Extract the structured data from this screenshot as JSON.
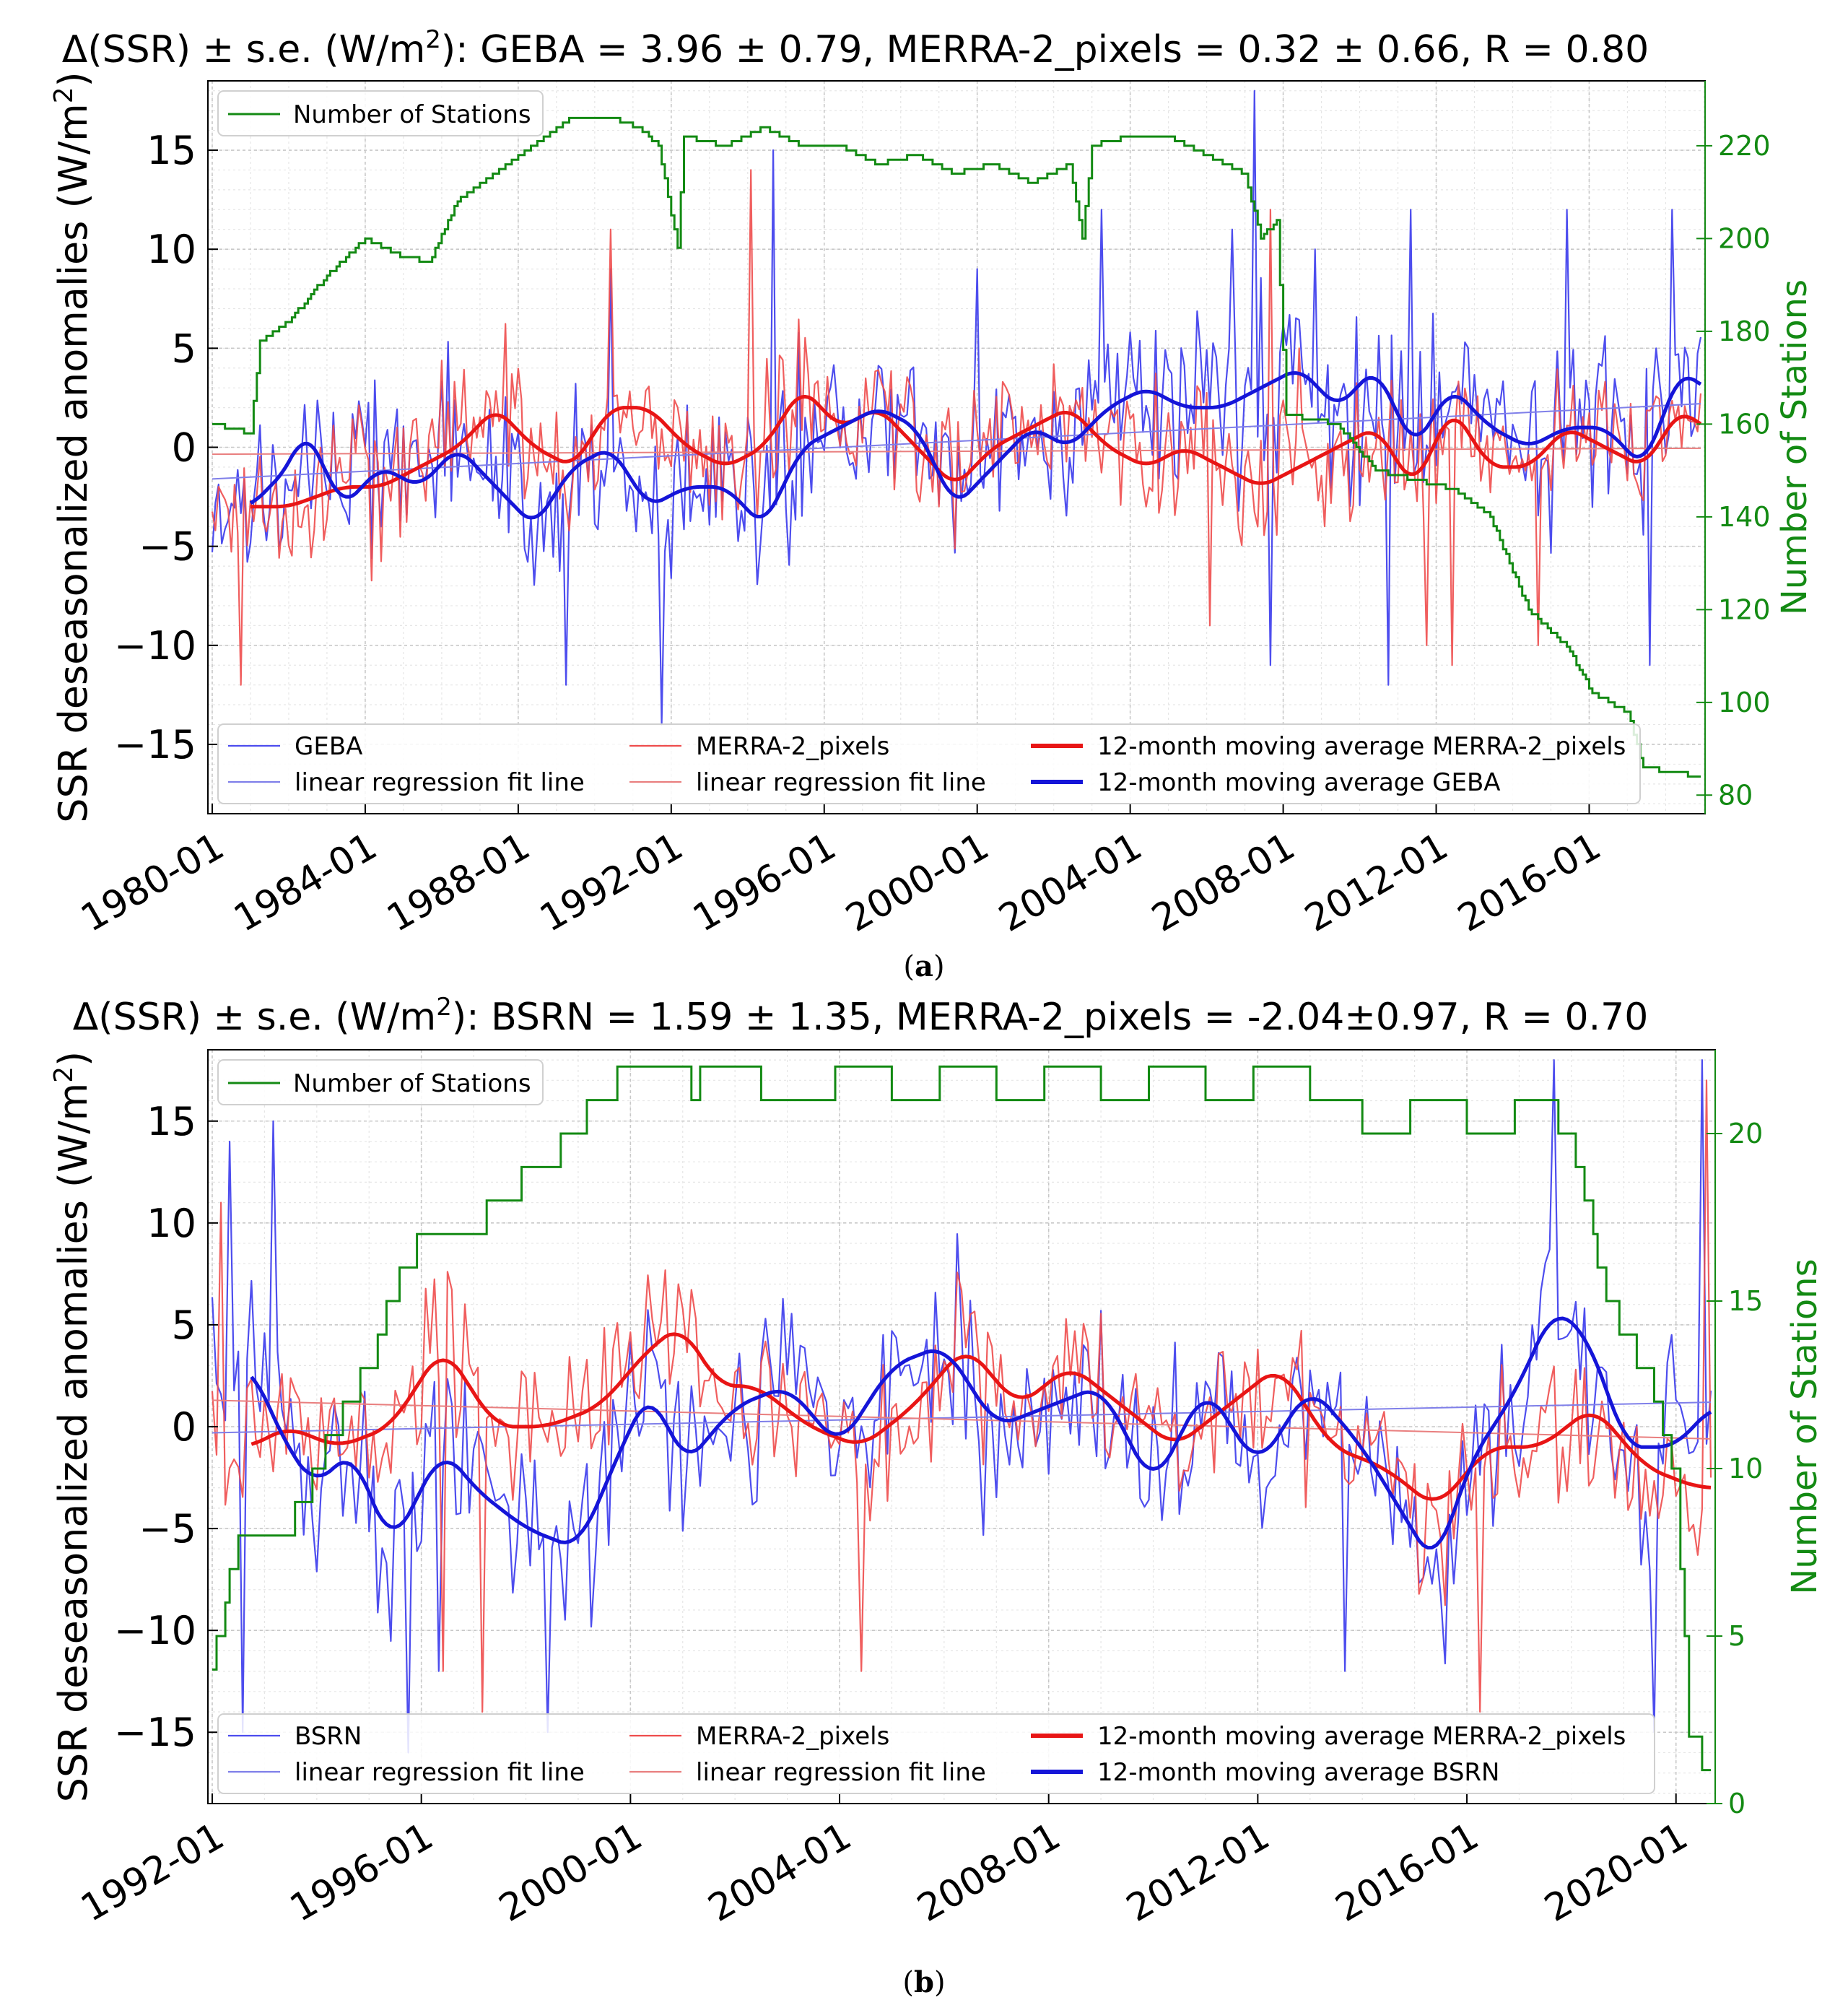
{
  "figure": {
    "captions": [
      {
        "open": "(",
        "letter": "a",
        "close": ")"
      },
      {
        "open": "(",
        "letter": "b",
        "close": ")"
      }
    ]
  },
  "colors": {
    "station": "#138a13",
    "ref_thin": "#4d4dee",
    "merra_thin": "#ee4d4d",
    "ref_ma": "#1515d8",
    "merra_ma": "#e81515",
    "reg_ref": "#7f7fe9",
    "reg_merra": "#e97f7f",
    "grid": "#c8c8c8"
  },
  "chart_data": [
    {
      "id": "a",
      "type": "line",
      "title": "Δ(SSR) ± s.e. (W/m²):  GEBA = 3.96 ± 0.79,  MERRA-2_pixels = 0.32 ± 0.66,  R = 0.80",
      "ylabel": "SSR deseasonalized anomalies (W/m²)",
      "y2label": "Number of Stations",
      "xlabel": "",
      "x_range": [
        "1980-01",
        "2018-12"
      ],
      "ylim": [
        -18.5,
        18.5
      ],
      "y2lim": [
        76,
        234
      ],
      "yticks": [
        -15,
        -10,
        -5,
        0,
        5,
        10,
        15
      ],
      "ytick_labels": [
        "−15",
        "−10",
        "−5",
        "0",
        "5",
        "10",
        "15"
      ],
      "y2ticks": [
        80,
        100,
        120,
        140,
        160,
        180,
        200,
        220
      ],
      "xticks": [
        "1980-01",
        "1984-01",
        "1988-01",
        "1992-01",
        "1996-01",
        "2000-01",
        "2004-01",
        "2008-01",
        "2012-01",
        "2016-01"
      ],
      "seed": 17,
      "station_legend": "Number of Stations",
      "station_keypoints": [
        [
          "1980-01",
          160
        ],
        [
          "1981-01",
          158
        ],
        [
          "1981-04",
          178
        ],
        [
          "1982-01",
          182
        ],
        [
          "1983-01",
          192
        ],
        [
          "1984-01",
          200
        ],
        [
          "1985-01",
          196
        ],
        [
          "1985-09",
          195
        ],
        [
          "1986-06",
          208
        ],
        [
          "1987-06",
          214
        ],
        [
          "1988-06",
          220
        ],
        [
          "1989-06",
          226
        ],
        [
          "1990-06",
          226
        ],
        [
          "1991-03",
          224
        ],
        [
          "1991-09",
          220
        ],
        [
          "1992-03",
          198
        ],
        [
          "1992-05",
          222
        ],
        [
          "1993-06",
          220
        ],
        [
          "1994-06",
          224
        ],
        [
          "1995-06",
          220
        ],
        [
          "1996-06",
          220
        ],
        [
          "1997-06",
          216
        ],
        [
          "1998-06",
          218
        ],
        [
          "1999-06",
          214
        ],
        [
          "2000-06",
          216
        ],
        [
          "2001-06",
          212
        ],
        [
          "2002-06",
          216
        ],
        [
          "2002-10",
          200
        ],
        [
          "2003-01",
          220
        ],
        [
          "2004-01",
          222
        ],
        [
          "2005-01",
          222
        ],
        [
          "2006-01",
          218
        ],
        [
          "2007-01",
          214
        ],
        [
          "2007-06",
          200
        ],
        [
          "2007-11",
          204
        ],
        [
          "2008-02",
          162
        ],
        [
          "2009-06",
          160
        ],
        [
          "2010-06",
          150
        ],
        [
          "2011-06",
          148
        ],
        [
          "2012-06",
          146
        ],
        [
          "2013-06",
          140
        ],
        [
          "2014-06",
          120
        ],
        [
          "2015-06",
          112
        ],
        [
          "2016-02",
          102
        ],
        [
          "2017-01",
          98
        ],
        [
          "2017-06",
          86
        ],
        [
          "2018-12",
          84
        ]
      ],
      "ref_ma_keypoints": [
        [
          "1981-01",
          -3
        ],
        [
          "1982-01",
          -1
        ],
        [
          "1982-06",
          1
        ],
        [
          "1983-06",
          -3
        ],
        [
          "1984-06",
          -1
        ],
        [
          "1985-06",
          -2
        ],
        [
          "1986-06",
          0
        ],
        [
          "1987-06",
          -2
        ],
        [
          "1988-06",
          -4
        ],
        [
          "1989-06",
          -1
        ],
        [
          "1990-06",
          0
        ],
        [
          "1991-06",
          -3
        ],
        [
          "1992-06",
          -2
        ],
        [
          "1993-06",
          -2
        ],
        [
          "1994-06",
          -4
        ],
        [
          "1995-06",
          0
        ],
        [
          "1996-06",
          1
        ],
        [
          "1997-06",
          2
        ],
        [
          "1998-06",
          1
        ],
        [
          "1999-06",
          -3
        ],
        [
          "2000-06",
          -1
        ],
        [
          "2001-06",
          1
        ],
        [
          "2002-06",
          0
        ],
        [
          "2003-06",
          2
        ],
        [
          "2004-06",
          3
        ],
        [
          "2005-06",
          2
        ],
        [
          "2006-06",
          2
        ],
        [
          "2007-06",
          3
        ],
        [
          "2008-06",
          4
        ],
        [
          "2009-06",
          2
        ],
        [
          "2010-06",
          4
        ],
        [
          "2011-06",
          0
        ],
        [
          "2012-06",
          3
        ],
        [
          "2013-06",
          1
        ],
        [
          "2014-06",
          0
        ],
        [
          "2015-06",
          1
        ],
        [
          "2016-06",
          1
        ],
        [
          "2017-06",
          -1
        ],
        [
          "2018-06",
          4
        ],
        [
          "2018-12",
          3
        ]
      ],
      "merra_ma_keypoints": [
        [
          "1981-01",
          -3
        ],
        [
          "1982-01",
          -3
        ],
        [
          "1983-06",
          -2
        ],
        [
          "1984-06",
          -2
        ],
        [
          "1985-06",
          -1
        ],
        [
          "1986-06",
          0
        ],
        [
          "1987-06",
          2
        ],
        [
          "1988-06",
          0
        ],
        [
          "1989-06",
          -1
        ],
        [
          "1990-06",
          2
        ],
        [
          "1991-06",
          2
        ],
        [
          "1992-06",
          0
        ],
        [
          "1993-06",
          -1
        ],
        [
          "1994-06",
          0
        ],
        [
          "1995-06",
          3
        ],
        [
          "1996-06",
          1
        ],
        [
          "1997-06",
          2
        ],
        [
          "1998-06",
          0
        ],
        [
          "1999-06",
          -2
        ],
        [
          "2000-06",
          0
        ],
        [
          "2001-06",
          1
        ],
        [
          "2002-06",
          2
        ],
        [
          "2003-06",
          0
        ],
        [
          "2004-06",
          -1
        ],
        [
          "2005-06",
          0
        ],
        [
          "2006-06",
          -1
        ],
        [
          "2007-06",
          -2
        ],
        [
          "2008-06",
          -1
        ],
        [
          "2009-06",
          0
        ],
        [
          "2010-06",
          1
        ],
        [
          "2011-06",
          -2
        ],
        [
          "2012-06",
          2
        ],
        [
          "2013-06",
          -1
        ],
        [
          "2014-06",
          -1
        ],
        [
          "2015-06",
          1
        ],
        [
          "2016-06",
          0
        ],
        [
          "2017-06",
          -1
        ],
        [
          "2018-06",
          2
        ],
        [
          "2018-12",
          1
        ]
      ],
      "ref_regression": [
        -1.6,
        2.2
      ],
      "merra_regression": [
        -0.35,
        -0.05
      ],
      "ref_spikes": [
        [
          "1989-04",
          -12
        ],
        [
          "1990-06",
          9
        ],
        [
          "1991-10",
          -14
        ],
        [
          "1994-09",
          15
        ],
        [
          "2000-01",
          9
        ],
        [
          "2003-04",
          12
        ],
        [
          "2006-09",
          11
        ],
        [
          "2007-04",
          18
        ],
        [
          "2007-09",
          -11
        ],
        [
          "2008-11",
          10
        ],
        [
          "2010-10",
          -12
        ],
        [
          "2011-05",
          12
        ],
        [
          "2015-06",
          12
        ],
        [
          "2017-08",
          -11
        ],
        [
          "2018-03",
          12
        ]
      ],
      "merra_spikes": [
        [
          "1980-10",
          -12
        ],
        [
          "1990-06",
          11
        ],
        [
          "1994-02",
          14
        ],
        [
          "2006-02",
          -9
        ],
        [
          "2007-09",
          12
        ],
        [
          "2008-06",
          5
        ],
        [
          "2011-10",
          -10
        ],
        [
          "2012-06",
          -11
        ],
        [
          "2014-09",
          -10
        ]
      ],
      "legend_station": "Number of Stations",
      "legend_main": [
        {
          "label": "GEBA",
          "series": "ref_thin"
        },
        {
          "label": "linear regression fit line",
          "series": "reg_ref"
        },
        {
          "label": "MERRA-2_pixels",
          "series": "merra_thin"
        },
        {
          "label": "linear regression fit line",
          "series": "reg_merra"
        },
        {
          "label": "12-month moving average MERRA-2_pixels",
          "series": "merra_ma"
        },
        {
          "label": "12-month moving average GEBA",
          "series": "ref_ma"
        }
      ],
      "noise_ref": 4.2,
      "noise_merra": 3.4
    },
    {
      "id": "b",
      "type": "line",
      "title": "Δ(SSR) ± s.e. (W/m²):  BSRN = 1.59 ± 1.35,  MERRA-2_pixels = -2.04±0.97,  R = 0.70",
      "ylabel": "SSR deseasonalized anomalies (W/m²)",
      "y2label": "Number of Stations",
      "xlabel": "",
      "x_range": [
        "1992-01",
        "2020-09"
      ],
      "ylim": [
        -18.5,
        18.5
      ],
      "y2lim": [
        0,
        22.5
      ],
      "yticks": [
        -15,
        -10,
        -5,
        0,
        5,
        10,
        15
      ],
      "ytick_labels": [
        "−15",
        "−10",
        "−5",
        "0",
        "5",
        "10",
        "15"
      ],
      "y2ticks": [
        0,
        5,
        10,
        15,
        20
      ],
      "xticks": [
        "1992-01",
        "1996-01",
        "2000-01",
        "2004-01",
        "2008-01",
        "2012-01",
        "2016-01",
        "2020-01"
      ],
      "seed": 41,
      "station_keypoints": [
        [
          "1992-01",
          4
        ],
        [
          "1992-04",
          6
        ],
        [
          "1992-07",
          8
        ],
        [
          "1993-06",
          8
        ],
        [
          "1994-01",
          10
        ],
        [
          "1995-01",
          13
        ],
        [
          "1995-06",
          15
        ],
        [
          "1996-01",
          17
        ],
        [
          "1997-01",
          17
        ],
        [
          "1997-06",
          18
        ],
        [
          "1998-06",
          19
        ],
        [
          "1999-06",
          21
        ],
        [
          "2000-01",
          22
        ],
        [
          "2001-01",
          22
        ],
        [
          "2001-03",
          21
        ],
        [
          "2001-06",
          22
        ],
        [
          "2003-06",
          21
        ],
        [
          "2004-06",
          22
        ],
        [
          "2005-06",
          21
        ],
        [
          "2006-06",
          22
        ],
        [
          "2007-06",
          21
        ],
        [
          "2008-06",
          22
        ],
        [
          "2009-06",
          21
        ],
        [
          "2010-06",
          22
        ],
        [
          "2011-06",
          21
        ],
        [
          "2012-06",
          22
        ],
        [
          "2013-06",
          21
        ],
        [
          "2014-06",
          20
        ],
        [
          "2015-06",
          21
        ],
        [
          "2016-06",
          20
        ],
        [
          "2017-06",
          21
        ],
        [
          "2018-01",
          20
        ],
        [
          "2018-09",
          15
        ],
        [
          "2019-06",
          13
        ],
        [
          "2020-01",
          10
        ],
        [
          "2020-04",
          2
        ],
        [
          "2020-09",
          1
        ]
      ],
      "ref_ma_keypoints": [
        [
          "1992-10",
          3
        ],
        [
          "1993-06",
          -1
        ],
        [
          "1994-01",
          -3
        ],
        [
          "1994-09",
          -1
        ],
        [
          "1995-06",
          -6
        ],
        [
          "1996-06",
          -1
        ],
        [
          "1997-01",
          -3
        ],
        [
          "1998-01",
          -5
        ],
        [
          "1999-01",
          -6
        ],
        [
          "2000-01",
          0
        ],
        [
          "2000-06",
          2
        ],
        [
          "2001-01",
          -2
        ],
        [
          "2002-01",
          1
        ],
        [
          "2003-01",
          2
        ],
        [
          "2004-01",
          -1
        ],
        [
          "2005-01",
          3
        ],
        [
          "2006-01",
          4
        ],
        [
          "2007-01",
          0
        ],
        [
          "2008-01",
          1
        ],
        [
          "2009-01",
          2
        ],
        [
          "2010-01",
          -3
        ],
        [
          "2011-01",
          2
        ],
        [
          "2012-01",
          -2
        ],
        [
          "2013-01",
          2
        ],
        [
          "2014-01",
          -1
        ],
        [
          "2015-06",
          -7
        ],
        [
          "2016-01",
          -2
        ],
        [
          "2017-01",
          2
        ],
        [
          "2017-09",
          6
        ],
        [
          "2018-06",
          4
        ],
        [
          "2019-01",
          -1
        ],
        [
          "2020-01",
          -1
        ],
        [
          "2020-09",
          1
        ]
      ],
      "merra_ma_keypoints": [
        [
          "1992-10",
          -1
        ],
        [
          "1993-06",
          0
        ],
        [
          "1994-06",
          -1
        ],
        [
          "1995-06",
          0
        ],
        [
          "1996-06",
          4
        ],
        [
          "1997-06",
          0
        ],
        [
          "1998-06",
          0
        ],
        [
          "1999-06",
          1
        ],
        [
          "2000-06",
          4
        ],
        [
          "2001-01",
          5
        ],
        [
          "2001-09",
          2
        ],
        [
          "2002-06",
          2
        ],
        [
          "2003-06",
          0
        ],
        [
          "2004-06",
          -1
        ],
        [
          "2005-06",
          1
        ],
        [
          "2006-06",
          4
        ],
        [
          "2007-06",
          1
        ],
        [
          "2008-06",
          3
        ],
        [
          "2009-06",
          1
        ],
        [
          "2010-06",
          -1
        ],
        [
          "2011-06",
          1
        ],
        [
          "2012-06",
          3
        ],
        [
          "2013-06",
          -1
        ],
        [
          "2014-06",
          -2
        ],
        [
          "2015-06",
          -4
        ],
        [
          "2016-06",
          -1
        ],
        [
          "2017-06",
          -1
        ],
        [
          "2018-06",
          1
        ],
        [
          "2019-06",
          -2
        ],
        [
          "2020-06",
          -3
        ]
      ],
      "ref_regression": [
        -0.3,
        1.2
      ],
      "merra_regression": [
        1.3,
        -0.6
      ],
      "ref_spikes": [
        [
          "1992-05",
          14
        ],
        [
          "1992-08",
          -15
        ],
        [
          "1993-03",
          15
        ],
        [
          "1995-10",
          -16
        ],
        [
          "1996-05",
          -12
        ],
        [
          "1998-06",
          -15
        ],
        [
          "2013-09",
          -12
        ],
        [
          "2017-09",
          18
        ],
        [
          "2019-08",
          -15
        ],
        [
          "2020-07",
          18
        ]
      ],
      "merra_spikes": [
        [
          "1992-03",
          11
        ],
        [
          "1996-06",
          -12
        ],
        [
          "1997-03",
          -14
        ],
        [
          "2004-06",
          -12
        ],
        [
          "2016-04",
          -14
        ],
        [
          "2020-08",
          17
        ]
      ],
      "legend_main": [
        {
          "label": "BSRN",
          "series": "ref_thin"
        },
        {
          "label": "linear regression fit line",
          "series": "reg_ref"
        },
        {
          "label": "MERRA-2_pixels",
          "series": "merra_thin"
        },
        {
          "label": "linear regression fit line",
          "series": "reg_merra"
        },
        {
          "label": "12-month moving average MERRA-2_pixels",
          "series": "merra_ma"
        },
        {
          "label": "12-month moving average BSRN",
          "series": "ref_ma"
        }
      ],
      "legend_station": "Number of Stations",
      "noise_ref": 4.6,
      "noise_merra": 3.8
    }
  ]
}
